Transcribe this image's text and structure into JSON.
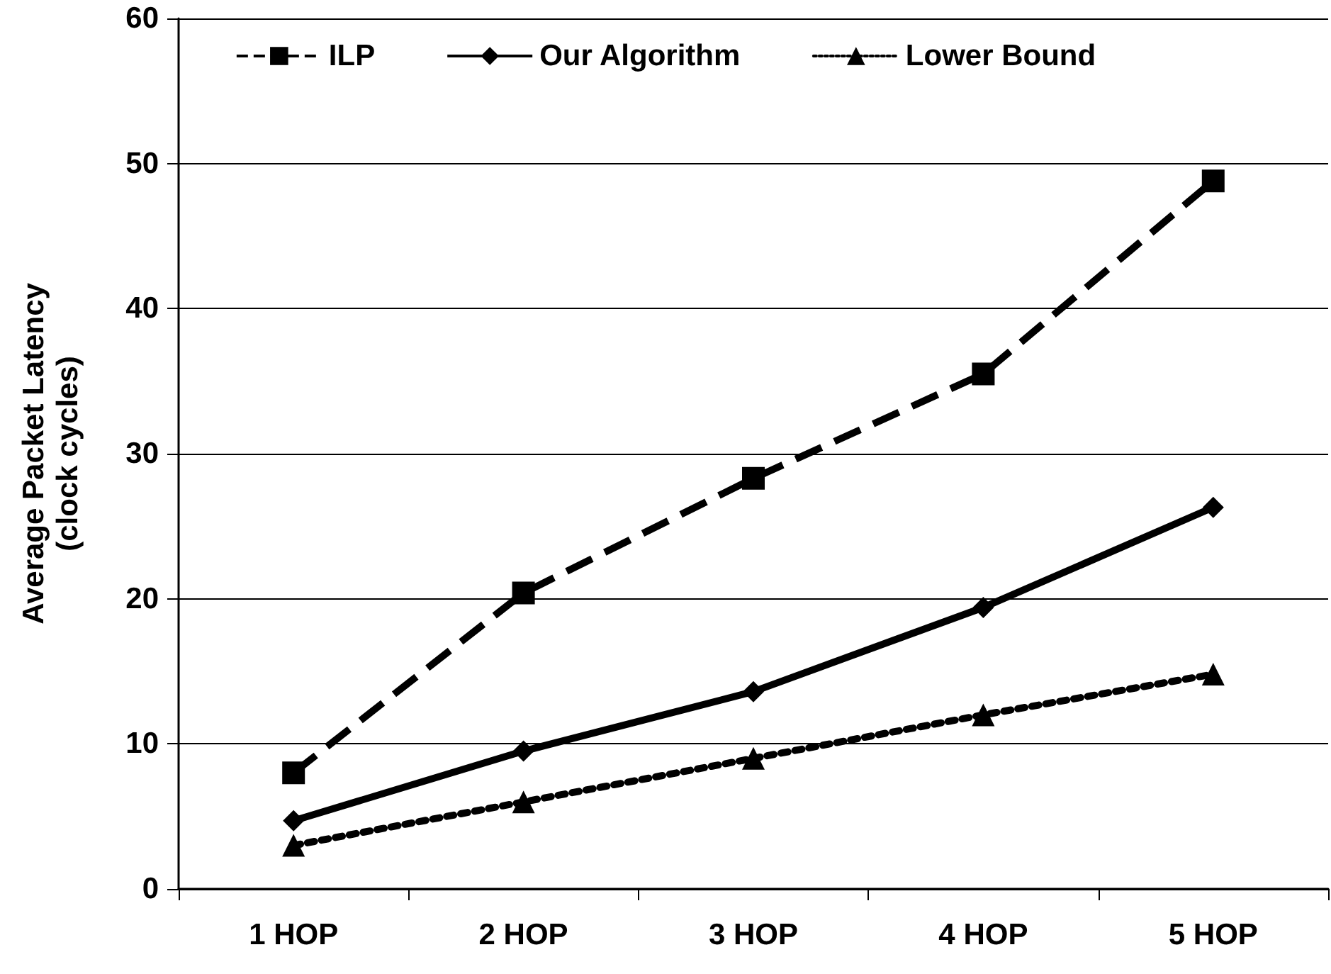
{
  "chart_data": {
    "type": "line",
    "ylabel": "Average Packet Latency\n(clock cycles)",
    "categories": [
      "1 HOP",
      "2 HOP",
      "3 HOP",
      "4 HOP",
      "5 HOP"
    ],
    "series": [
      {
        "name": "ILP",
        "color": "#000000",
        "marker": "square",
        "line_style": "dashed",
        "values": [
          8.0,
          20.4,
          28.3,
          35.5,
          48.8
        ]
      },
      {
        "name": "Our Algorithm",
        "color": "#000000",
        "marker": "diamond",
        "line_style": "solid",
        "values": [
          4.7,
          9.5,
          13.6,
          19.4,
          26.3
        ]
      },
      {
        "name": "Lower Bound",
        "color": "#000000",
        "marker": "triangle",
        "line_style": "dotted",
        "values": [
          3.0,
          6.0,
          9.0,
          12.0,
          14.8
        ]
      }
    ],
    "ylim": [
      0,
      60
    ],
    "yticks": [
      0,
      10,
      20,
      30,
      40,
      50,
      60
    ],
    "grid": "y",
    "legend": "top"
  }
}
